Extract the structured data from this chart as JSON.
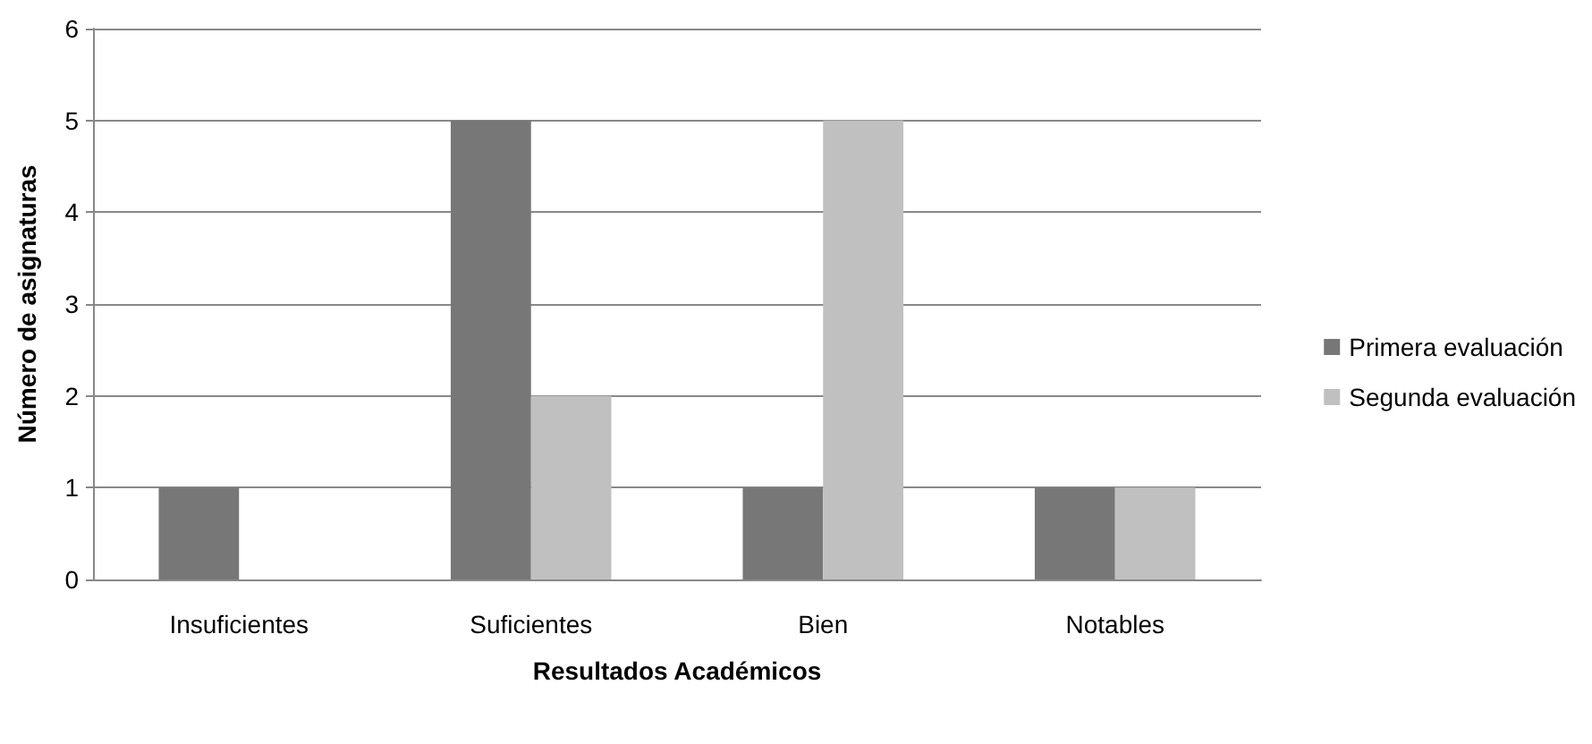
{
  "chart_data": {
    "type": "bar",
    "xlabel": "Resultados Académicos",
    "ylabel": "Número de asignaturas",
    "categories": [
      "Insuficientes",
      "Suficientes",
      "Bien",
      "Notables"
    ],
    "series": [
      {
        "name": "Primera evaluación",
        "color": "#777777",
        "values": [
          1,
          5,
          1,
          1
        ]
      },
      {
        "name": "Segunda evaluación",
        "color": "#c0c0c0",
        "values": [
          0,
          2,
          5,
          1
        ]
      }
    ],
    "ylim": [
      0,
      6
    ],
    "yticks": [
      0,
      1,
      2,
      3,
      4,
      5,
      6
    ],
    "grid": "y",
    "legend": "right"
  }
}
